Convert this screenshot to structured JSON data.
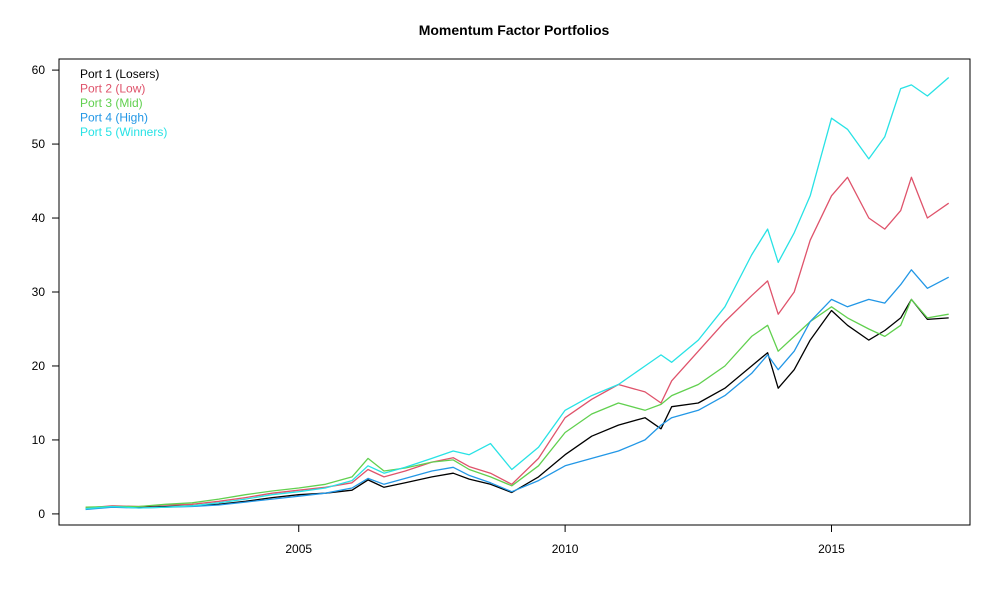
{
  "chart_data": {
    "type": "line",
    "title": "Momentum Factor Portfolios",
    "xlabel": "",
    "ylabel": "",
    "xlim": [
      2000.5,
      2017.6
    ],
    "ylim": [
      -1.5,
      61.5
    ],
    "x_ticks": [
      2005,
      2010,
      2015
    ],
    "y_ticks": [
      0,
      10,
      20,
      30,
      40,
      50,
      60
    ],
    "grid": false,
    "legend_position": "top-left",
    "series": [
      {
        "name": "Port 1 (Losers)",
        "color": "#000000",
        "points": [
          [
            2001.0,
            0.7
          ],
          [
            2001.5,
            1.0
          ],
          [
            2002.0,
            0.9
          ],
          [
            2002.5,
            1.0
          ],
          [
            2003.0,
            1.1
          ],
          [
            2003.5,
            1.3
          ],
          [
            2004.0,
            1.7
          ],
          [
            2004.5,
            2.2
          ],
          [
            2005.0,
            2.6
          ],
          [
            2005.5,
            2.8
          ],
          [
            2006.0,
            3.2
          ],
          [
            2006.3,
            4.6
          ],
          [
            2006.6,
            3.6
          ],
          [
            2007.0,
            4.2
          ],
          [
            2007.5,
            5.0
          ],
          [
            2007.9,
            5.5
          ],
          [
            2008.2,
            4.7
          ],
          [
            2008.6,
            4.0
          ],
          [
            2009.0,
            2.9
          ],
          [
            2009.5,
            5.0
          ],
          [
            2010.0,
            8.0
          ],
          [
            2010.5,
            10.5
          ],
          [
            2011.0,
            12.0
          ],
          [
            2011.5,
            13.0
          ],
          [
            2011.8,
            11.5
          ],
          [
            2012.0,
            14.5
          ],
          [
            2012.5,
            15.0
          ],
          [
            2013.0,
            17.0
          ],
          [
            2013.5,
            20.0
          ],
          [
            2013.8,
            21.8
          ],
          [
            2014.0,
            17.0
          ],
          [
            2014.3,
            19.5
          ],
          [
            2014.6,
            23.5
          ],
          [
            2015.0,
            27.5
          ],
          [
            2015.3,
            25.5
          ],
          [
            2015.7,
            23.5
          ],
          [
            2016.0,
            24.8
          ],
          [
            2016.3,
            26.5
          ],
          [
            2016.5,
            29.0
          ],
          [
            2016.8,
            26.3
          ],
          [
            2017.2,
            26.5
          ]
        ]
      },
      {
        "name": "Port 2 (Low)",
        "color": "#DF536B",
        "points": [
          [
            2001.0,
            0.8
          ],
          [
            2001.5,
            1.1
          ],
          [
            2002.0,
            1.0
          ],
          [
            2002.5,
            1.2
          ],
          [
            2003.0,
            1.3
          ],
          [
            2003.5,
            1.7
          ],
          [
            2004.0,
            2.2
          ],
          [
            2004.5,
            2.8
          ],
          [
            2005.0,
            3.2
          ],
          [
            2005.5,
            3.6
          ],
          [
            2006.0,
            4.2
          ],
          [
            2006.3,
            6.0
          ],
          [
            2006.6,
            5.0
          ],
          [
            2007.0,
            5.8
          ],
          [
            2007.5,
            7.0
          ],
          [
            2007.9,
            7.6
          ],
          [
            2008.2,
            6.4
          ],
          [
            2008.6,
            5.5
          ],
          [
            2009.0,
            4.0
          ],
          [
            2009.5,
            7.5
          ],
          [
            2010.0,
            13.0
          ],
          [
            2010.5,
            15.5
          ],
          [
            2011.0,
            17.5
          ],
          [
            2011.5,
            16.5
          ],
          [
            2011.8,
            15.0
          ],
          [
            2012.0,
            18.0
          ],
          [
            2012.5,
            22.0
          ],
          [
            2013.0,
            26.0
          ],
          [
            2013.5,
            29.5
          ],
          [
            2013.8,
            31.5
          ],
          [
            2014.0,
            27.0
          ],
          [
            2014.3,
            30.0
          ],
          [
            2014.6,
            37.0
          ],
          [
            2015.0,
            43.0
          ],
          [
            2015.3,
            45.5
          ],
          [
            2015.7,
            40.0
          ],
          [
            2016.0,
            38.5
          ],
          [
            2016.3,
            41.0
          ],
          [
            2016.5,
            45.5
          ],
          [
            2016.8,
            40.0
          ],
          [
            2017.2,
            42.0
          ]
        ]
      },
      {
        "name": "Port 3 (Mid)",
        "color": "#61D04F",
        "points": [
          [
            2001.0,
            0.9
          ],
          [
            2001.5,
            1.0
          ],
          [
            2002.0,
            1.0
          ],
          [
            2002.5,
            1.3
          ],
          [
            2003.0,
            1.5
          ],
          [
            2003.5,
            2.0
          ],
          [
            2004.0,
            2.6
          ],
          [
            2004.5,
            3.1
          ],
          [
            2005.0,
            3.5
          ],
          [
            2005.5,
            4.0
          ],
          [
            2006.0,
            5.0
          ],
          [
            2006.3,
            7.5
          ],
          [
            2006.6,
            5.8
          ],
          [
            2007.0,
            6.2
          ],
          [
            2007.5,
            7.0
          ],
          [
            2007.9,
            7.3
          ],
          [
            2008.2,
            6.0
          ],
          [
            2008.6,
            5.0
          ],
          [
            2009.0,
            3.8
          ],
          [
            2009.5,
            6.5
          ],
          [
            2010.0,
            11.0
          ],
          [
            2010.5,
            13.5
          ],
          [
            2011.0,
            15.0
          ],
          [
            2011.5,
            14.0
          ],
          [
            2011.8,
            14.8
          ],
          [
            2012.0,
            16.0
          ],
          [
            2012.5,
            17.5
          ],
          [
            2013.0,
            20.0
          ],
          [
            2013.5,
            24.0
          ],
          [
            2013.8,
            25.5
          ],
          [
            2014.0,
            22.0
          ],
          [
            2014.3,
            24.0
          ],
          [
            2014.6,
            26.0
          ],
          [
            2015.0,
            28.0
          ],
          [
            2015.3,
            26.5
          ],
          [
            2015.7,
            25.0
          ],
          [
            2016.0,
            24.0
          ],
          [
            2016.3,
            25.5
          ],
          [
            2016.5,
            29.0
          ],
          [
            2016.8,
            26.5
          ],
          [
            2017.2,
            27.0
          ]
        ]
      },
      {
        "name": "Port 4 (High)",
        "color": "#2297E6",
        "points": [
          [
            2001.0,
            0.6
          ],
          [
            2001.5,
            0.9
          ],
          [
            2002.0,
            0.8
          ],
          [
            2002.5,
            0.9
          ],
          [
            2003.0,
            1.0
          ],
          [
            2003.5,
            1.2
          ],
          [
            2004.0,
            1.6
          ],
          [
            2004.5,
            2.0
          ],
          [
            2005.0,
            2.4
          ],
          [
            2005.5,
            2.8
          ],
          [
            2006.0,
            3.5
          ],
          [
            2006.3,
            4.8
          ],
          [
            2006.6,
            4.0
          ],
          [
            2007.0,
            4.8
          ],
          [
            2007.5,
            5.8
          ],
          [
            2007.9,
            6.3
          ],
          [
            2008.2,
            5.2
          ],
          [
            2008.6,
            4.2
          ],
          [
            2009.0,
            3.0
          ],
          [
            2009.5,
            4.5
          ],
          [
            2010.0,
            6.5
          ],
          [
            2010.5,
            7.5
          ],
          [
            2011.0,
            8.5
          ],
          [
            2011.5,
            10.0
          ],
          [
            2011.8,
            12.0
          ],
          [
            2012.0,
            13.0
          ],
          [
            2012.5,
            14.0
          ],
          [
            2013.0,
            16.0
          ],
          [
            2013.5,
            19.0
          ],
          [
            2013.8,
            21.5
          ],
          [
            2014.0,
            19.5
          ],
          [
            2014.3,
            22.0
          ],
          [
            2014.6,
            26.0
          ],
          [
            2015.0,
            29.0
          ],
          [
            2015.3,
            28.0
          ],
          [
            2015.7,
            29.0
          ],
          [
            2016.0,
            28.5
          ],
          [
            2016.3,
            31.0
          ],
          [
            2016.5,
            33.0
          ],
          [
            2016.8,
            30.5
          ],
          [
            2017.2,
            32.0
          ]
        ]
      },
      {
        "name": "Port 5 (Winners)",
        "color": "#28E2E5",
        "points": [
          [
            2001.0,
            0.7
          ],
          [
            2001.5,
            1.0
          ],
          [
            2002.0,
            0.8
          ],
          [
            2002.5,
            0.9
          ],
          [
            2003.0,
            1.1
          ],
          [
            2003.5,
            1.5
          ],
          [
            2004.0,
            2.0
          ],
          [
            2004.5,
            2.6
          ],
          [
            2005.0,
            3.0
          ],
          [
            2005.5,
            3.5
          ],
          [
            2006.0,
            4.5
          ],
          [
            2006.3,
            6.5
          ],
          [
            2006.6,
            5.5
          ],
          [
            2007.0,
            6.3
          ],
          [
            2007.5,
            7.5
          ],
          [
            2007.9,
            8.5
          ],
          [
            2008.2,
            8.0
          ],
          [
            2008.6,
            9.5
          ],
          [
            2009.0,
            6.0
          ],
          [
            2009.5,
            9.0
          ],
          [
            2010.0,
            14.0
          ],
          [
            2010.5,
            16.0
          ],
          [
            2011.0,
            17.5
          ],
          [
            2011.5,
            20.0
          ],
          [
            2011.8,
            21.5
          ],
          [
            2012.0,
            20.5
          ],
          [
            2012.5,
            23.5
          ],
          [
            2013.0,
            28.0
          ],
          [
            2013.5,
            35.0
          ],
          [
            2013.8,
            38.5
          ],
          [
            2014.0,
            34.0
          ],
          [
            2014.3,
            38.0
          ],
          [
            2014.6,
            43.0
          ],
          [
            2015.0,
            53.5
          ],
          [
            2015.3,
            52.0
          ],
          [
            2015.7,
            48.0
          ],
          [
            2016.0,
            51.0
          ],
          [
            2016.3,
            57.5
          ],
          [
            2016.5,
            58.0
          ],
          [
            2016.8,
            56.5
          ],
          [
            2017.2,
            59.0
          ]
        ]
      }
    ]
  }
}
